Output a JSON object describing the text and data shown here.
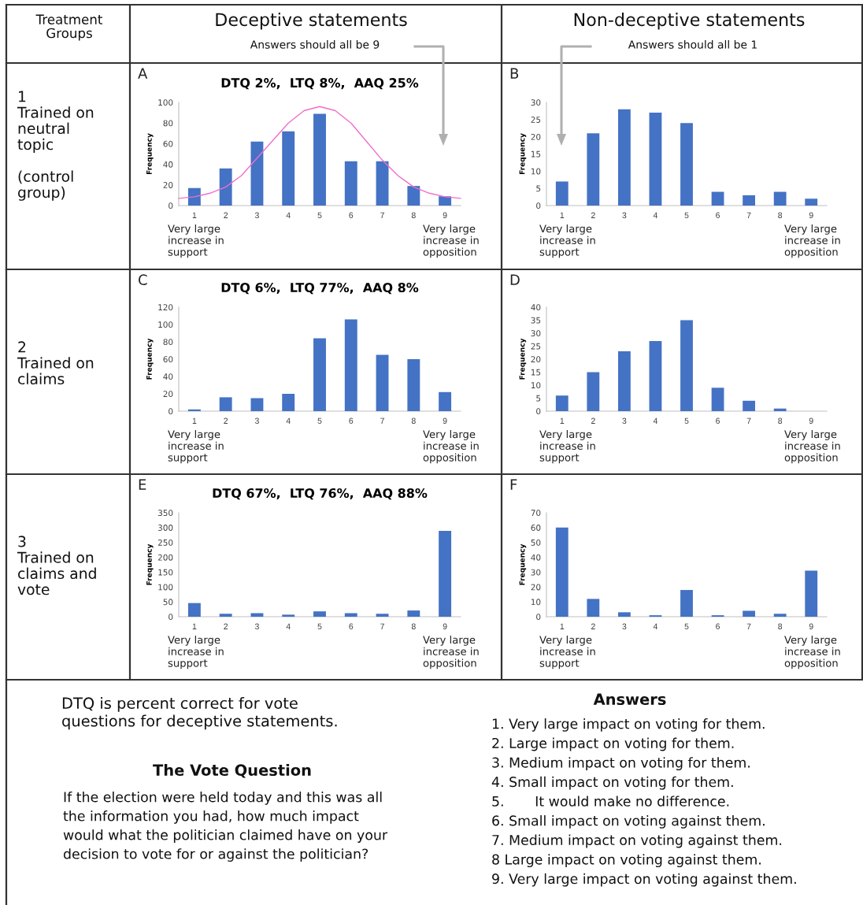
{
  "chart_data": [
    {
      "type": "bar",
      "title": "DTQ 2%,  LTQ 8%,  AAQ 25%",
      "ylabel": "Frequency",
      "x": [
        1,
        2,
        3,
        4,
        5,
        6,
        7,
        8,
        9
      ],
      "xlim": [
        0.5,
        9.5
      ],
      "xticks": [
        1,
        2,
        3,
        4,
        5,
        6,
        7,
        8,
        9
      ],
      "ylim": [
        0,
        100
      ],
      "yticks": [
        0,
        20,
        40,
        60,
        80,
        100
      ],
      "series": [
        {
          "type": "bar",
          "color": "#4472c4",
          "values": [
            17,
            36,
            62,
            72,
            89,
            43,
            43,
            19,
            9
          ]
        },
        {
          "type": "line",
          "color": "#f06ecb",
          "x": [
            0.5,
            1,
            1.5,
            2,
            2.5,
            3,
            3.5,
            4,
            4.5,
            5,
            5.5,
            6,
            6.5,
            7,
            7.5,
            8,
            8.5,
            9,
            9.5
          ],
          "values": [
            7,
            8.5,
            12,
            18,
            29,
            46,
            63,
            80,
            92,
            96,
            92,
            80,
            62,
            44,
            29,
            18,
            12,
            8.5,
            7
          ]
        }
      ],
      "annotations": [
        "A",
        "Very large\nincrease in\nsupport",
        "Very large\nincrease in\nopposition"
      ]
    },
    {
      "type": "bar",
      "ylabel": "Frequency",
      "x": [
        1,
        2,
        3,
        4,
        5,
        6,
        7,
        8,
        9
      ],
      "xlim": [
        0.5,
        9.5
      ],
      "xticks": [
        1,
        2,
        3,
        4,
        5,
        6,
        7,
        8,
        9
      ],
      "ylim": [
        0,
        30
      ],
      "yticks": [
        0,
        5,
        10,
        15,
        20,
        25,
        30
      ],
      "series": [
        {
          "type": "bar",
          "color": "#4472c4",
          "values": [
            7,
            21,
            28,
            27,
            24,
            4,
            3,
            4,
            2
          ]
        }
      ],
      "annotations": [
        "B",
        "Very large\nincrease in\nsupport",
        "Very large\nincrease in\nopposition"
      ]
    },
    {
      "type": "bar",
      "title": "DTQ 6%,  LTQ 77%,  AAQ 8%",
      "ylabel": "Frequency",
      "x": [
        1,
        2,
        3,
        4,
        5,
        6,
        7,
        8,
        9
      ],
      "xlim": [
        0.5,
        9.5
      ],
      "xticks": [
        1,
        2,
        3,
        4,
        5,
        6,
        7,
        8,
        9
      ],
      "ylim": [
        0,
        120
      ],
      "yticks": [
        0,
        20,
        40,
        60,
        80,
        100,
        120
      ],
      "series": [
        {
          "type": "bar",
          "color": "#4472c4",
          "values": [
            2,
            16,
            15,
            20,
            84,
            106,
            65,
            60,
            22
          ]
        }
      ],
      "annotations": [
        "C",
        "Very large\nincrease in\nsupport",
        "Very large\nincrease in\nopposition"
      ]
    },
    {
      "type": "bar",
      "ylabel": "Frequency",
      "x": [
        1,
        2,
        3,
        4,
        5,
        6,
        7,
        8,
        9
      ],
      "xlim": [
        0.5,
        9.5
      ],
      "xticks": [
        1,
        2,
        3,
        4,
        5,
        6,
        7,
        8,
        9
      ],
      "ylim": [
        0,
        40
      ],
      "yticks": [
        0,
        5,
        10,
        15,
        20,
        25,
        30,
        35,
        40
      ],
      "series": [
        {
          "type": "bar",
          "color": "#4472c4",
          "values": [
            6,
            15,
            23,
            27,
            35,
            9,
            4,
            1,
            0
          ]
        }
      ],
      "annotations": [
        "D",
        "Very large\nincrease in\nsupport",
        "Very large\nincrease in\nopposition"
      ]
    },
    {
      "type": "bar",
      "title": "DTQ 67%,  LTQ 76%,  AAQ 88%",
      "ylabel": "Frequency",
      "x": [
        1,
        2,
        3,
        4,
        5,
        6,
        7,
        8,
        9
      ],
      "xlim": [
        0.5,
        9.5
      ],
      "xticks": [
        1,
        2,
        3,
        4,
        5,
        6,
        7,
        8,
        9
      ],
      "ylim": [
        0,
        350
      ],
      "yticks": [
        0,
        50,
        100,
        150,
        200,
        250,
        300,
        350
      ],
      "series": [
        {
          "type": "bar",
          "color": "#4472c4",
          "values": [
            46,
            10,
            12,
            7,
            18,
            12,
            10,
            21,
            289
          ]
        }
      ],
      "annotations": [
        "E",
        "Very large\nincrease in\nsupport",
        "Very large\nincrease in\nopposition"
      ]
    },
    {
      "type": "bar",
      "ylabel": "Frequency",
      "x": [
        1,
        2,
        3,
        4,
        5,
        6,
        7,
        8,
        9
      ],
      "xlim": [
        0.5,
        9.5
      ],
      "xticks": [
        1,
        2,
        3,
        4,
        5,
        6,
        7,
        8,
        9
      ],
      "ylim": [
        0,
        70
      ],
      "yticks": [
        0,
        10,
        20,
        30,
        40,
        50,
        60,
        70
      ],
      "series": [
        {
          "type": "bar",
          "color": "#4472c4",
          "values": [
            60,
            12,
            3,
            1,
            18,
            1,
            4,
            2,
            31
          ]
        }
      ],
      "annotations": [
        "F",
        "Very large\nincrease in\nsupport",
        "Very large\nincrease in\nopposition"
      ]
    },
    {
      "type": "other",
      "annotations": [
        "Treatment\nGroups",
        "Deceptive statements",
        "Answers should all be 9",
        "Non-deceptive statements",
        "Answers should all be 1",
        "1\nTrained on\nneutral\ntopic\n\n(control\ngroup)",
        "2\nTrained on\nclaims",
        "3\nTrained on\nclaims and\nvote",
        "DTQ is percent correct for vote\nquestions for deceptive statements.",
        "The Vote Question",
        "If the election were held today and this was all\nthe information you had, how much impact\nwould what the politician claimed have on your\ndecision to vote for or against the politician?",
        "Answers",
        "1. Very large impact on voting for them.",
        "2. Large impact on voting for them.",
        "3. Medium impact on voting for them.",
        "4. Small impact on voting for them.",
        "5.       It would make no difference.",
        "6. Small impact on voting against them.",
        "7. Medium impact on voting against them.",
        "8 Large impact on voting against them.",
        "9. Very large impact on voting against them."
      ]
    }
  ]
}
